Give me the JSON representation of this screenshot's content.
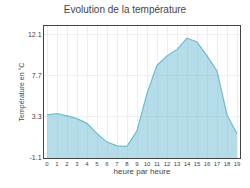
{
  "chart_data": {
    "type": "area",
    "title": "Evolution de la température",
    "xlabel": "heure par heure",
    "ylabel": "Température en °C",
    "x": [
      0,
      1,
      2,
      3,
      4,
      5,
      6,
      7,
      8,
      9,
      10,
      11,
      12,
      13,
      14,
      15,
      16,
      17,
      18,
      19
    ],
    "values": [
      3.5,
      3.65,
      3.4,
      3.1,
      2.6,
      1.5,
      0.6,
      0.2,
      0.15,
      1.8,
      5.8,
      8.8,
      9.8,
      10.5,
      11.7,
      11.3,
      9.8,
      8.2,
      3.5,
      1.5
    ],
    "color": "#6bbcd4",
    "xlim": [
      -0.3,
      19.3
    ],
    "xticks": [
      0,
      1,
      2,
      3,
      4,
      5,
      6,
      7,
      8,
      9,
      10,
      11,
      12,
      13,
      14,
      15,
      16,
      17,
      18,
      19
    ],
    "ylim": [
      -1.1,
      13.0
    ],
    "yticks": [
      -1.1,
      3.3,
      7.7,
      12.1
    ],
    "grid": true
  }
}
